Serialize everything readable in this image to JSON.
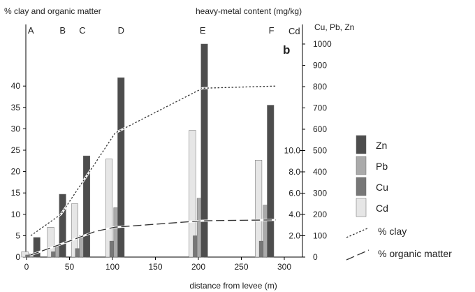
{
  "chart_data": {
    "type": "bar",
    "panel_label": "b",
    "left_axis_title": "% clay and organic matter",
    "right_axis_title": "heavy-metal content (mg/kg)",
    "right_axis_subtitle": "Cu, Pb, Zn",
    "cd_axis_label": "Cd",
    "xlabel": "distance from levee (m)",
    "x_ticks": [
      0,
      50,
      100,
      150,
      200,
      250,
      300
    ],
    "xlim": [
      0,
      320
    ],
    "left_ticks": [
      0,
      5,
      10,
      15,
      20,
      25,
      30,
      35,
      40
    ],
    "left_ylim": [
      0,
      48
    ],
    "right_ticks": [
      0,
      100,
      200,
      300,
      400,
      500,
      600,
      700,
      800,
      900,
      1000
    ],
    "right_ylim": [
      0,
      1000
    ],
    "cd_ticks": [
      {
        "label": "2.0",
        "value": 2
      },
      {
        "label": "4.0",
        "value": 4
      },
      {
        "label": "6.0",
        "value": 6
      },
      {
        "label": "8.0",
        "value": 8
      },
      {
        "label": "10.0",
        "value": 10
      }
    ],
    "cd_scale_per_unit": 50,
    "sites": [
      {
        "label": "A",
        "x": 5
      },
      {
        "label": "B",
        "x": 42
      },
      {
        "label": "C",
        "x": 65
      },
      {
        "label": "D",
        "x": 110
      },
      {
        "label": "E",
        "x": 205
      },
      {
        "label": "F",
        "x": 285
      }
    ],
    "series": [
      {
        "name": "Cd",
        "color": "#e6e6e6",
        "axis": "cd",
        "offset": -0.9,
        "values": [
          {
            "x": 5,
            "y": 0.5
          },
          {
            "x": 35,
            "y": 2.8
          },
          {
            "x": 63,
            "y": 5.0
          },
          {
            "x": 103,
            "y": 9.2
          },
          {
            "x": 200,
            "y": 11.9
          },
          {
            "x": 277,
            "y": 9.1
          }
        ]
      },
      {
        "name": "Cu",
        "color": "#777777",
        "axis": "right",
        "offset": -0.3,
        "values": [
          {
            "x": 5,
            "y": 10
          },
          {
            "x": 35,
            "y": 25
          },
          {
            "x": 63,
            "y": 40
          },
          {
            "x": 103,
            "y": 75
          },
          {
            "x": 200,
            "y": 100
          },
          {
            "x": 277,
            "y": 75
          }
        ]
      },
      {
        "name": "Pb",
        "color": "#aaaaaa",
        "axis": "right",
        "offset": 0.3,
        "values": [
          {
            "x": 5,
            "y": 15
          },
          {
            "x": 35,
            "y": 50
          },
          {
            "x": 63,
            "y": 100
          },
          {
            "x": 103,
            "y": 232
          },
          {
            "x": 200,
            "y": 276
          },
          {
            "x": 277,
            "y": 244
          }
        ]
      },
      {
        "name": "Zn",
        "color": "#4d4d4d",
        "axis": "right",
        "offset": 0.9,
        "values": [
          {
            "x": 5,
            "y": 92
          },
          {
            "x": 35,
            "y": 295
          },
          {
            "x": 63,
            "y": 475
          },
          {
            "x": 103,
            "y": 842
          },
          {
            "x": 200,
            "y": 1000
          },
          {
            "x": 277,
            "y": 713
          }
        ]
      }
    ],
    "lines": [
      {
        "name": "% clay",
        "dash": "2.5,2.5",
        "points": [
          {
            "x": 5,
            "y": 5
          },
          {
            "x": 40,
            "y": 10
          },
          {
            "x": 80,
            "y": 22
          },
          {
            "x": 103,
            "y": 29
          },
          {
            "x": 205,
            "y": 39.5
          },
          {
            "x": 290,
            "y": 40
          }
        ]
      },
      {
        "name": "% organic matter",
        "dash": "12,5",
        "points": [
          {
            "x": 5,
            "y": 0.5
          },
          {
            "x": 40,
            "y": 3
          },
          {
            "x": 80,
            "y": 6
          },
          {
            "x": 103,
            "y": 7
          },
          {
            "x": 205,
            "y": 8.5
          },
          {
            "x": 290,
            "y": 8.7
          }
        ]
      }
    ],
    "legend": [
      {
        "name": "Zn",
        "kind": "bar",
        "color": "#4d4d4d"
      },
      {
        "name": "Pb",
        "kind": "bar",
        "color": "#aaaaaa"
      },
      {
        "name": "Cu",
        "kind": "bar",
        "color": "#777777"
      },
      {
        "name": "Cd",
        "kind": "bar",
        "color": "#e6e6e6"
      },
      {
        "name": "% clay",
        "kind": "line",
        "dash": "2.5,2.5"
      },
      {
        "name": "% organic matter",
        "kind": "line",
        "dash": "12,5"
      }
    ],
    "legend_position": "right"
  }
}
